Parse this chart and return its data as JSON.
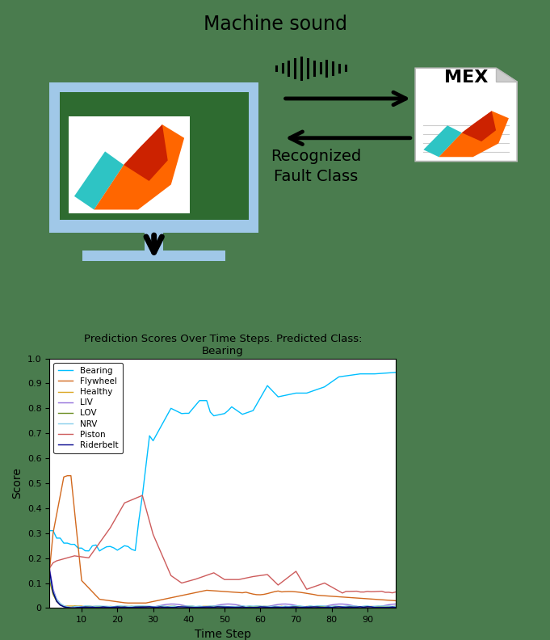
{
  "title": "Prediction Scores Over Time Steps. Predicted Class:\nBearing",
  "xlabel": "Time Step",
  "ylabel": "Score",
  "bg_color": "#4a7c4e",
  "plot_bg": "#ffffff",
  "machine_sound_text": "Machine sound",
  "recognized_text": "Recognized\nFault Class",
  "mex_text": "MEX",
  "series_colors": {
    "Bearing": "#00BFFF",
    "Flywheel": "#D2691E",
    "Healthy": "#DAA520",
    "LIV": "#9370DB",
    "LOV": "#6B8E23",
    "NRV": "#87CEEB",
    "Piston": "#CD5C5C",
    "Riderbelt": "#00008B"
  },
  "ylim": [
    0,
    1
  ],
  "xlim": [
    1,
    98
  ],
  "xticks": [
    10,
    20,
    30,
    40,
    50,
    60,
    70,
    80,
    90
  ],
  "yticks": [
    0,
    0.1,
    0.2,
    0.3,
    0.4,
    0.5,
    0.6,
    0.7,
    0.8,
    0.9,
    1.0
  ]
}
